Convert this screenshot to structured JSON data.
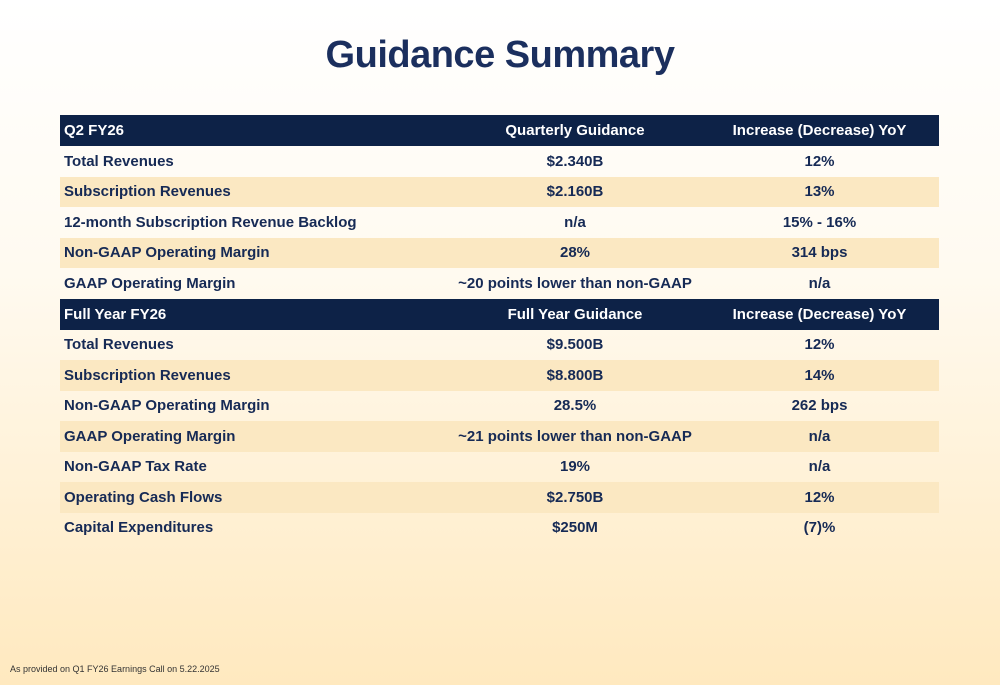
{
  "title": "Guidance Summary",
  "sections": [
    {
      "header": [
        "Q2 FY26",
        "Quarterly Guidance",
        "Increase (Decrease) YoY"
      ],
      "rows": [
        [
          "Total Revenues",
          "$2.340B",
          "12%"
        ],
        [
          "Subscription Revenues",
          "$2.160B",
          "13%"
        ],
        [
          "12-month Subscription Revenue Backlog",
          "n/a",
          "15% - 16%"
        ],
        [
          "Non-GAAP Operating Margin",
          "28%",
          "314 bps"
        ],
        [
          "GAAP Operating Margin",
          "~20 points lower than non-GAAP",
          "n/a"
        ]
      ]
    },
    {
      "header": [
        "Full Year FY26",
        "Full Year Guidance",
        "Increase (Decrease) YoY"
      ],
      "rows": [
        [
          "Total Revenues",
          "$9.500B",
          "12%"
        ],
        [
          "Subscription Revenues",
          "$8.800B",
          "14%"
        ],
        [
          "Non-GAAP Operating Margin",
          "28.5%",
          "262 bps"
        ],
        [
          "GAAP Operating Margin",
          "~21 points lower than non-GAAP",
          "n/a"
        ],
        [
          "Non-GAAP Tax Rate",
          "19%",
          "n/a"
        ],
        [
          "Operating Cash Flows",
          "$2.750B",
          "12%"
        ],
        [
          "Capital Expenditures",
          "$250M",
          "(7)%"
        ]
      ]
    }
  ],
  "footnote": "As provided on Q1 FY26 Earnings Call on 5.22.2025",
  "colors": {
    "header_bg": "#0d2247",
    "row_shade": "#fbe8c2",
    "title": "#1b2f5e"
  }
}
